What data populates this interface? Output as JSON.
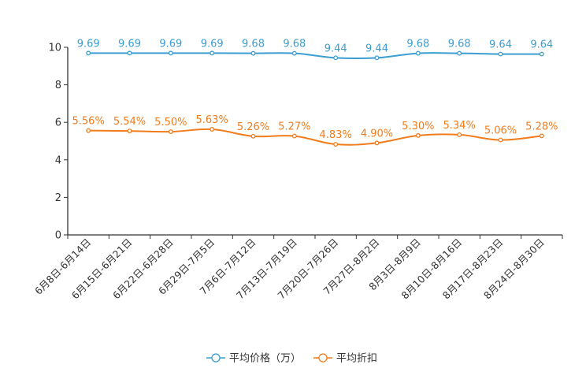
{
  "chart_data": {
    "type": "line",
    "categories": [
      "6月8日-6月14日",
      "6月15日-6月21日",
      "6月22日-6月28日",
      "6月29日-7月5日",
      "7月6日-7月12日",
      "7月13日-7月19日",
      "7月20日-7月26日",
      "7月27日-8月2日",
      "8月3日-8月9日",
      "8月10日-8月16日",
      "8月17日-8月23日",
      "8月24日-8月30日"
    ],
    "series": [
      {
        "name": "平均价格（万）",
        "color": "#3b9dd0",
        "values": [
          9.69,
          9.69,
          9.69,
          9.69,
          9.68,
          9.68,
          9.44,
          9.44,
          9.68,
          9.68,
          9.64,
          9.64
        ],
        "labels": [
          "9.69",
          "9.69",
          "9.69",
          "9.69",
          "9.68",
          "9.68",
          "9.44",
          "9.44",
          "9.68",
          "9.68",
          "9.64",
          "9.64"
        ]
      },
      {
        "name": "平均折扣",
        "color": "#f07c1c",
        "values": [
          5.56,
          5.54,
          5.5,
          5.63,
          5.26,
          5.27,
          4.83,
          4.9,
          5.3,
          5.34,
          5.06,
          5.28
        ],
        "labels": [
          "5.56%",
          "5.54%",
          "5.50%",
          "5.63%",
          "5.26%",
          "5.27%",
          "4.83%",
          "4.90%",
          "5.30%",
          "5.34%",
          "5.06%",
          "5.28%"
        ]
      }
    ],
    "yticks": [
      "0",
      "2",
      "4",
      "6",
      "8",
      "10"
    ],
    "ylim": [
      0,
      10
    ],
    "title": "",
    "xlabel": "",
    "ylabel": "",
    "legend_position": "bottom-center",
    "grid": false
  }
}
